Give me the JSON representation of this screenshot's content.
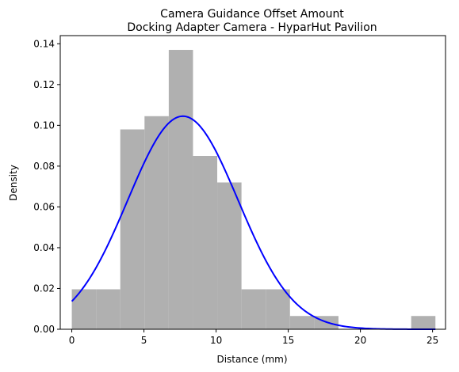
{
  "chart_data": {
    "type": "bar",
    "title": "Camera Guidance Offset Amount",
    "subtitle": "Docking Adapter Camera - HyparHut Pavilion",
    "xlabel": "Distance (mm)",
    "ylabel": "Density",
    "xlim": [
      -0.8,
      25.9
    ],
    "ylim": [
      0,
      0.144
    ],
    "x_ticks": [
      0,
      5,
      10,
      15,
      20,
      25
    ],
    "y_ticks": [
      0.0,
      0.02,
      0.04,
      0.06,
      0.08,
      0.1,
      0.12,
      0.14
    ],
    "grid": false,
    "histogram": {
      "color": "#b0b0b0",
      "bin_edges": [
        0.0,
        1.68,
        3.36,
        5.04,
        6.72,
        8.4,
        10.08,
        11.76,
        13.44,
        15.12,
        16.8,
        18.48,
        20.16,
        21.84,
        23.52,
        25.2
      ],
      "density": [
        0.0196,
        0.0196,
        0.098,
        0.1045,
        0.137,
        0.085,
        0.072,
        0.0196,
        0.0196,
        0.0065,
        0.0065,
        0.0,
        0.0,
        0.0,
        0.0065
      ]
    },
    "curve": {
      "type": "line",
      "color": "#0000ff",
      "x_start": 0.0,
      "x_end": 25.2,
      "peak_x": 7.7,
      "peak_y": 0.1045,
      "std": 3.82
    }
  }
}
